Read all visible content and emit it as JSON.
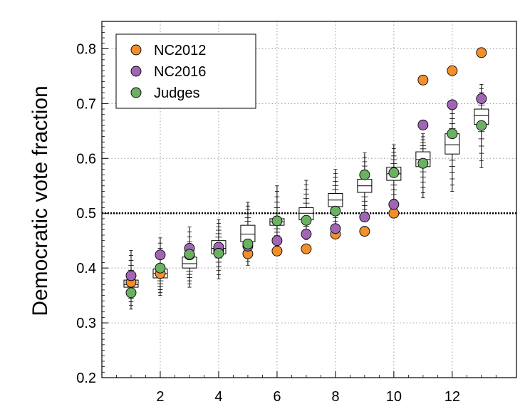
{
  "chart_data": {
    "type": "scatter",
    "title": "",
    "xlabel": "",
    "ylabel": "Democratic vote fraction",
    "xlim": [
      0,
      14.2
    ],
    "ylim": [
      0.2,
      0.85
    ],
    "xticks": [
      2,
      4,
      6,
      8,
      10,
      12
    ],
    "xtick_labels": [
      "2",
      "4",
      "6",
      "8",
      "10",
      "12"
    ],
    "yticks": [
      0.2,
      0.3,
      0.4,
      0.5,
      0.6,
      0.7,
      0.8
    ],
    "ytick_labels": [
      "0.2",
      "0.3",
      "0.4",
      "0.5",
      "0.6",
      "0.7",
      "0.8"
    ],
    "grid": true,
    "reference_line": 0.5,
    "legend_position": "top-left",
    "boxes": [
      {
        "x": 1,
        "q1": 0.365,
        "median": 0.37,
        "q3": 0.378,
        "whisker_low": 0.325,
        "whisker_high": 0.432
      },
      {
        "x": 2,
        "q1": 0.382,
        "median": 0.39,
        "q3": 0.398,
        "whisker_low": 0.35,
        "whisker_high": 0.455
      },
      {
        "x": 3,
        "q1": 0.4,
        "median": 0.408,
        "q3": 0.42,
        "whisker_low": 0.365,
        "whisker_high": 0.475
      },
      {
        "x": 4,
        "q1": 0.426,
        "median": 0.436,
        "q3": 0.45,
        "whisker_low": 0.38,
        "whisker_high": 0.488
      },
      {
        "x": 5,
        "q1": 0.448,
        "median": 0.462,
        "q3": 0.478,
        "whisker_low": 0.405,
        "whisker_high": 0.52
      },
      {
        "x": 6,
        "q1": 0.478,
        "median": 0.484,
        "q3": 0.49,
        "whisker_low": 0.44,
        "whisker_high": 0.55
      },
      {
        "x": 7,
        "q1": 0.488,
        "median": 0.5,
        "q3": 0.51,
        "whisker_low": 0.452,
        "whisker_high": 0.56
      },
      {
        "x": 8,
        "q1": 0.512,
        "median": 0.524,
        "q3": 0.536,
        "whisker_low": 0.472,
        "whisker_high": 0.58
      },
      {
        "x": 9,
        "q1": 0.538,
        "median": 0.55,
        "q3": 0.562,
        "whisker_low": 0.49,
        "whisker_high": 0.61
      },
      {
        "x": 10,
        "q1": 0.56,
        "median": 0.572,
        "q3": 0.584,
        "whisker_low": 0.508,
        "whisker_high": 0.625
      },
      {
        "x": 11,
        "q1": 0.585,
        "median": 0.598,
        "q3": 0.612,
        "whisker_low": 0.528,
        "whisker_high": 0.645
      },
      {
        "x": 12,
        "q1": 0.608,
        "median": 0.625,
        "q3": 0.645,
        "whisker_low": 0.54,
        "whisker_high": 0.7
      },
      {
        "x": 13,
        "q1": 0.662,
        "median": 0.678,
        "q3": 0.69,
        "whisker_low": 0.583,
        "whisker_high": 0.735
      }
    ],
    "series": [
      {
        "name": "NC2012",
        "color": "#f28e2b",
        "x": [
          1,
          2,
          3,
          4,
          5,
          6,
          7,
          8,
          9,
          10,
          11,
          12,
          13
        ],
        "values": [
          0.374,
          0.39,
          0.424,
          0.432,
          0.426,
          0.431,
          0.435,
          0.462,
          0.467,
          0.5,
          0.743,
          0.76,
          0.793
        ]
      },
      {
        "name": "NC2016",
        "color": "#a066b5",
        "x": [
          1,
          2,
          3,
          4,
          5,
          6,
          7,
          8,
          9,
          10,
          11,
          12,
          13
        ],
        "values": [
          0.386,
          0.424,
          0.436,
          0.438,
          0.44,
          0.45,
          0.462,
          0.472,
          0.493,
          0.516,
          0.661,
          0.698,
          0.709
        ]
      },
      {
        "name": "Judges",
        "color": "#6ab162",
        "x": [
          1,
          2,
          3,
          4,
          5,
          6,
          7,
          8,
          9,
          10,
          11,
          12,
          13
        ],
        "values": [
          0.355,
          0.4,
          0.425,
          0.427,
          0.444,
          0.486,
          0.487,
          0.504,
          0.57,
          0.574,
          0.591,
          0.645,
          0.66
        ]
      }
    ]
  }
}
